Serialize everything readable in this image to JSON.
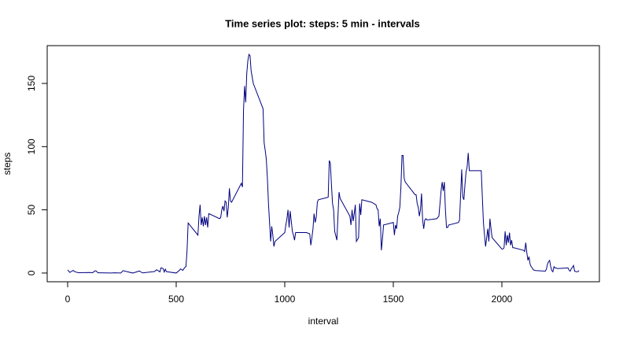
{
  "chart_data": {
    "type": "line",
    "title": "Time series plot: steps: 5 min - intervals",
    "x_label": "interval",
    "y_label": "steps",
    "color": "#000080",
    "xlim": [
      -94.2,
      2449.2
    ],
    "ylim": [
      -6.9,
      179.9
    ],
    "xticks": [
      0,
      500,
      1000,
      1500,
      2000
    ],
    "yticks": [
      0,
      50,
      100,
      150
    ],
    "x": [
      0,
      10,
      25,
      35,
      50,
      100,
      115,
      125,
      130,
      140,
      200,
      215,
      230,
      245,
      255,
      300,
      330,
      345,
      400,
      410,
      425,
      430,
      440,
      445,
      450,
      455,
      500,
      515,
      520,
      530,
      540,
      545,
      550,
      555,
      600,
      605,
      610,
      615,
      620,
      625,
      630,
      635,
      640,
      645,
      650,
      700,
      705,
      710,
      715,
      720,
      725,
      730,
      735,
      740,
      745,
      750,
      755,
      800,
      805,
      810,
      815,
      820,
      825,
      830,
      835,
      840,
      845,
      850,
      855,
      900,
      905,
      910,
      915,
      920,
      925,
      930,
      935,
      940,
      945,
      950,
      955,
      1000,
      1005,
      1010,
      1015,
      1020,
      1025,
      1030,
      1035,
      1040,
      1045,
      1050,
      1100,
      1115,
      1120,
      1125,
      1130,
      1135,
      1140,
      1145,
      1150,
      1155,
      1200,
      1205,
      1210,
      1215,
      1220,
      1225,
      1230,
      1240,
      1245,
      1250,
      1255,
      1300,
      1305,
      1310,
      1315,
      1320,
      1325,
      1330,
      1340,
      1345,
      1350,
      1355,
      1400,
      1420,
      1425,
      1430,
      1435,
      1440,
      1445,
      1450,
      1455,
      1500,
      1505,
      1510,
      1515,
      1520,
      1525,
      1530,
      1535,
      1540,
      1545,
      1550,
      1555,
      1600,
      1605,
      1610,
      1615,
      1620,
      1625,
      1630,
      1635,
      1640,
      1645,
      1650,
      1655,
      1700,
      1705,
      1710,
      1715,
      1720,
      1725,
      1730,
      1735,
      1740,
      1745,
      1750,
      1755,
      1800,
      1805,
      1810,
      1815,
      1820,
      1825,
      1830,
      1835,
      1840,
      1845,
      1850,
      1855,
      1900,
      1905,
      1910,
      1915,
      1920,
      1925,
      1930,
      1935,
      1940,
      1945,
      1950,
      1955,
      2000,
      2005,
      2010,
      2015,
      2020,
      2025,
      2030,
      2035,
      2040,
      2045,
      2050,
      2055,
      2100,
      2105,
      2110,
      2115,
      2120,
      2125,
      2130,
      2135,
      2140,
      2145,
      2150,
      2155,
      2200,
      2205,
      2210,
      2215,
      2220,
      2225,
      2230,
      2235,
      2240,
      2245,
      2250,
      2255,
      2300,
      2305,
      2310,
      2315,
      2320,
      2325,
      2330,
      2335,
      2340,
      2345,
      2350,
      2355
    ],
    "values": [
      2.5,
      0.5,
      2.1,
      0.9,
      0.3,
      0.4,
      0.3,
      1.6,
      1.8,
      0.2,
      0,
      0.2,
      0.1,
      0,
      1.9,
      0,
      1.6,
      0.1,
      1.2,
      2.6,
      0.9,
      4.1,
      3.5,
      0.8,
      3.1,
      1.1,
      0,
      2.2,
      3.3,
      2.1,
      4.5,
      5.2,
      18,
      39.6,
      30,
      45,
      54,
      38,
      44,
      37,
      45,
      38,
      44,
      36,
      47,
      43,
      44,
      50,
      53,
      49,
      57,
      56,
      44,
      52,
      67,
      57,
      56,
      71,
      68,
      129,
      148,
      135,
      158,
      168,
      173,
      172,
      160,
      155,
      150,
      130,
      103,
      97,
      90,
      75,
      55,
      40,
      25,
      37,
      30,
      21,
      25,
      32,
      38,
      43,
      50,
      36,
      49,
      41,
      33,
      30,
      26,
      32,
      32,
      31,
      22,
      28,
      35,
      47,
      40,
      44,
      56,
      58,
      60,
      89,
      87,
      70,
      55,
      50,
      33,
      26,
      45,
      64,
      59,
      45,
      38,
      50,
      41,
      47,
      54,
      25,
      28,
      55,
      46,
      58,
      56,
      54,
      51,
      50,
      37,
      43,
      18,
      27,
      38,
      40,
      30,
      38,
      35,
      45,
      48,
      52,
      68,
      93,
      93,
      75,
      72,
      62,
      62,
      55,
      52,
      45,
      50,
      63,
      42,
      35,
      42,
      43,
      42,
      43,
      44,
      45,
      55,
      65,
      72,
      65,
      72,
      50,
      36,
      36,
      38,
      40,
      42,
      62,
      82,
      60,
      58,
      70,
      80,
      84,
      95,
      81,
      81,
      81,
      81,
      60,
      40,
      30,
      21,
      28,
      35,
      25,
      43,
      35,
      28,
      19,
      19,
      20,
      33,
      22,
      30,
      24,
      32,
      22,
      26,
      20,
      20,
      18,
      17,
      24,
      16,
      10,
      13,
      7,
      5,
      4,
      2.5,
      2.2,
      2,
      1.5,
      3,
      7,
      9,
      10,
      5,
      2,
      1,
      5,
      4,
      4,
      3.5,
      4,
      4,
      2,
      1.5,
      3.5,
      4.5,
      6,
      1.5,
      1.2,
      1,
      1,
      2
    ]
  }
}
